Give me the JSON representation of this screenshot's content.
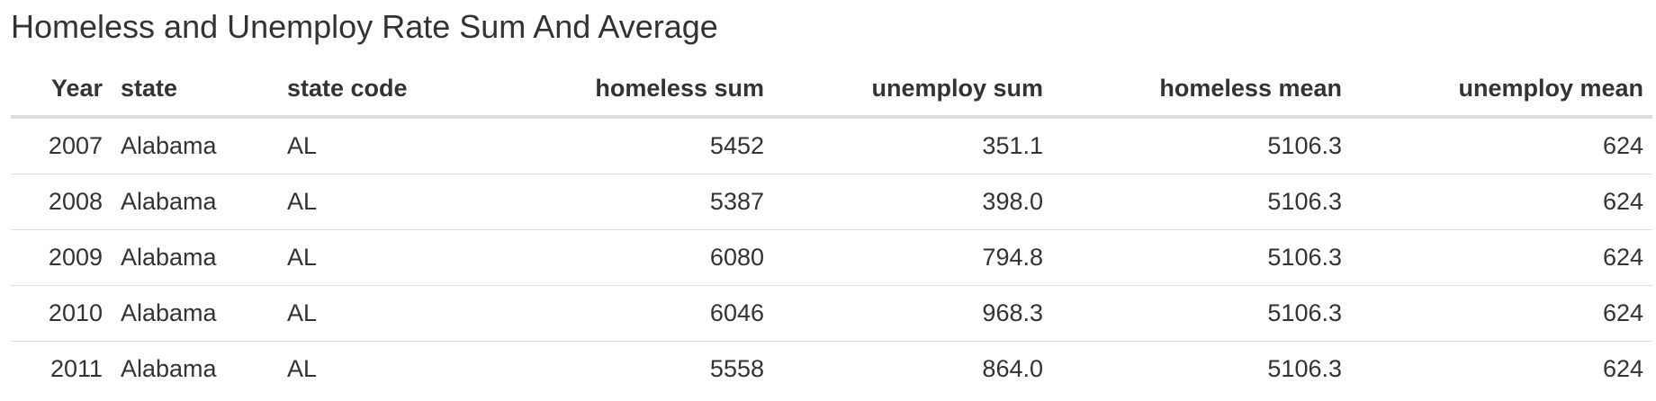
{
  "table": {
    "caption": "Homeless and Unemploy Rate Sum And Average",
    "columns": [
      {
        "key": "year",
        "label": "Year",
        "align": "right"
      },
      {
        "key": "state",
        "label": "state",
        "align": "left"
      },
      {
        "key": "state_code",
        "label": "state code",
        "align": "left"
      },
      {
        "key": "homeless_sum",
        "label": "homeless sum",
        "align": "right"
      },
      {
        "key": "unemploy_sum",
        "label": "unemploy sum",
        "align": "right"
      },
      {
        "key": "homeless_mean",
        "label": "homeless mean",
        "align": "right"
      },
      {
        "key": "unemploy_mean",
        "label": "unemploy mean",
        "align": "right"
      }
    ],
    "rows": [
      {
        "year": "2007",
        "state": "Alabama",
        "state_code": "AL",
        "homeless_sum": "5452",
        "unemploy_sum": "351.1",
        "homeless_mean": "5106.3",
        "unemploy_mean": "624"
      },
      {
        "year": "2008",
        "state": "Alabama",
        "state_code": "AL",
        "homeless_sum": "5387",
        "unemploy_sum": "398.0",
        "homeless_mean": "5106.3",
        "unemploy_mean": "624"
      },
      {
        "year": "2009",
        "state": "Alabama",
        "state_code": "AL",
        "homeless_sum": "6080",
        "unemploy_sum": "794.8",
        "homeless_mean": "5106.3",
        "unemploy_mean": "624"
      },
      {
        "year": "2010",
        "state": "Alabama",
        "state_code": "AL",
        "homeless_sum": "6046",
        "unemploy_sum": "968.3",
        "homeless_mean": "5106.3",
        "unemploy_mean": "624"
      },
      {
        "year": "2011",
        "state": "Alabama",
        "state_code": "AL",
        "homeless_sum": "5558",
        "unemploy_sum": "864.0",
        "homeless_mean": "5106.3",
        "unemploy_mean": "624"
      }
    ]
  }
}
